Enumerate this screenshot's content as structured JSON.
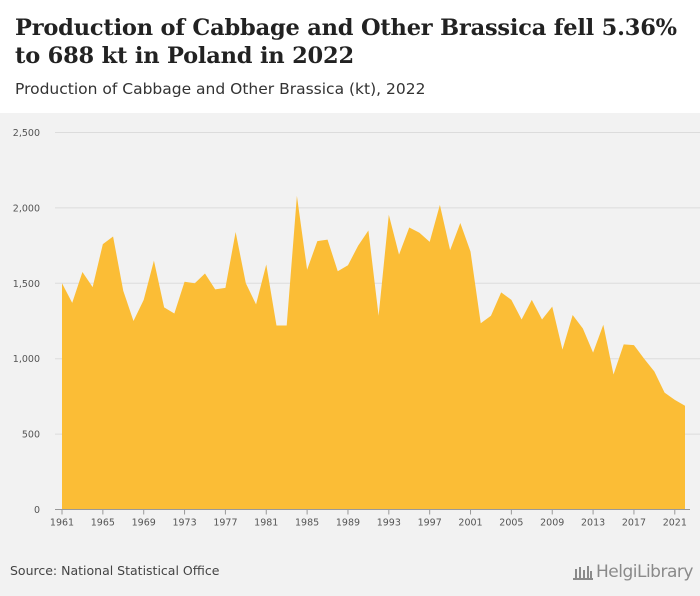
{
  "title": "Production of Cabbage and Other Brassica fell 5.36% to 688 kt in Poland in 2022",
  "subtitle": "Production of Cabbage and Other Brassica (kt), 2022",
  "source": "Source: National Statistical Office",
  "brand": "HelgiLibrary",
  "colors": {
    "area": "#fbbd36",
    "grid": "#dcdcdc",
    "axis": "#999999",
    "background": "#f2f2f2"
  },
  "chart_data": {
    "type": "area",
    "title": "Production of Cabbage and Other Brassica (kt), 2022",
    "xlabel": "",
    "ylabel": "",
    "ylim": [
      0,
      2500
    ],
    "xlim": [
      1961,
      2022
    ],
    "yticks": [
      0,
      500,
      1000,
      1500,
      2000,
      2500
    ],
    "ytick_labels": [
      "0",
      "500",
      "1,000",
      "1,500",
      "2,000",
      "2,500"
    ],
    "xticks": [
      1961,
      1965,
      1969,
      1973,
      1977,
      1981,
      1985,
      1989,
      1993,
      1997,
      2001,
      2005,
      2009,
      2013,
      2017,
      2021
    ],
    "grid": true,
    "legend": "none",
    "x": [
      1961,
      1962,
      1963,
      1964,
      1965,
      1966,
      1967,
      1968,
      1969,
      1970,
      1971,
      1972,
      1973,
      1974,
      1975,
      1976,
      1977,
      1978,
      1979,
      1980,
      1981,
      1982,
      1983,
      1984,
      1985,
      1986,
      1987,
      1988,
      1989,
      1990,
      1991,
      1992,
      1993,
      1994,
      1995,
      1996,
      1997,
      1998,
      1999,
      2000,
      2001,
      2002,
      2003,
      2004,
      2005,
      2006,
      2007,
      2008,
      2009,
      2010,
      2011,
      2012,
      2013,
      2014,
      2015,
      2016,
      2017,
      2018,
      2019,
      2020,
      2021,
      2022
    ],
    "values": [
      1500,
      1370,
      1575,
      1475,
      1760,
      1810,
      1450,
      1250,
      1390,
      1650,
      1340,
      1300,
      1510,
      1500,
      1565,
      1460,
      1470,
      1840,
      1500,
      1360,
      1625,
      1220,
      1220,
      2080,
      1590,
      1780,
      1790,
      1580,
      1620,
      1750,
      1850,
      1285,
      1955,
      1690,
      1870,
      1835,
      1775,
      2020,
      1720,
      1900,
      1710,
      1235,
      1285,
      1440,
      1390,
      1260,
      1390,
      1260,
      1345,
      1060,
      1290,
      1200,
      1040,
      1225,
      895,
      1095,
      1090,
      1000,
      915,
      775,
      727,
      688
    ]
  }
}
